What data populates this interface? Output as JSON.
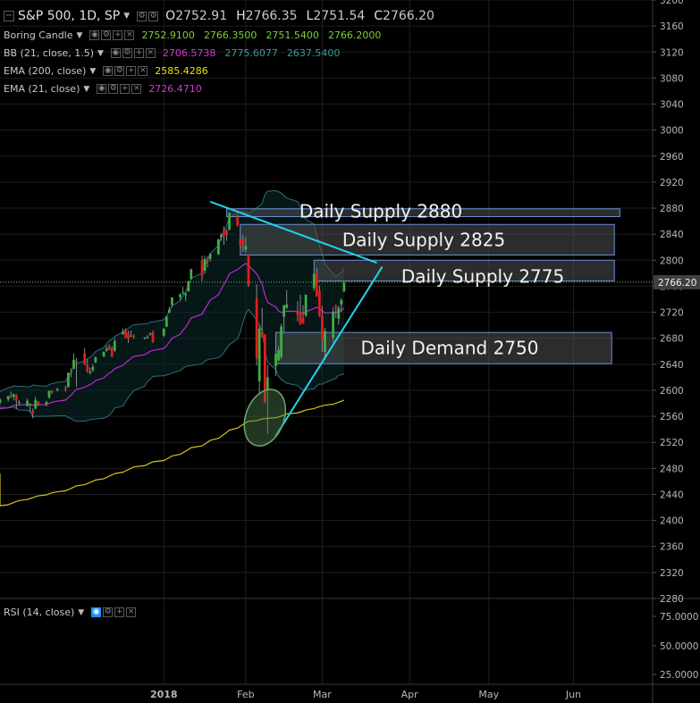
{
  "header": {
    "symbol": "S&P 500, 1D, SP",
    "ohlc": [
      {
        "label": "O",
        "value": "2752.91"
      },
      {
        "label": "H",
        "value": "2766.35"
      },
      {
        "label": "L",
        "value": "2751.54"
      },
      {
        "label": "C",
        "value": "2766.20"
      }
    ]
  },
  "indicators": [
    {
      "name": "Boring Candle",
      "values": [
        "2752.9100",
        "2766.3500",
        "2751.5400",
        "2766.2000"
      ],
      "colors": [
        "#7ccf3a",
        "#7ccf3a",
        "#7ccf3a",
        "#7ccf3a"
      ]
    },
    {
      "name": "BB (21, close, 1.5)",
      "values": [
        "2706.5738",
        "2775.6077",
        "2637.5400"
      ],
      "colors": [
        "#d23ad2",
        "#3a9aa0",
        "#3a9aa0"
      ]
    },
    {
      "name": "EMA (200, close)",
      "values": [
        "2585.4286"
      ],
      "colors": [
        "#e6e600"
      ]
    },
    {
      "name": "EMA (21, close)",
      "values": [
        "2726.4710"
      ],
      "colors": [
        "#d23ad2"
      ]
    }
  ],
  "rsi_panel": {
    "label": "RSI (14, close)"
  },
  "colors": {
    "up": "#3cb043",
    "down": "#e21d1d",
    "trend": "#22d3ee",
    "ema200": "#d4c21a",
    "ema21": "#c026d3",
    "bb": "#2f6f78",
    "zone_fill": "#505050",
    "zone_border": "#6b8fd6",
    "price_tag": "#3f3f3f",
    "ellipse": "#4a7a4a"
  },
  "chart_data": {
    "type": "candlestick",
    "y_ticks": [
      3200,
      3160,
      3120,
      3080,
      3040,
      3000,
      2960,
      2920,
      2880,
      2840,
      2800,
      2760,
      2720,
      2680,
      2640,
      2600,
      2560,
      2520,
      2480,
      2440,
      2400,
      2360,
      2320,
      2280
    ],
    "ylim": [
      2280,
      3200
    ],
    "x_labels": [
      "2018",
      "Feb",
      "Mar",
      "Apr",
      "May",
      "Jun"
    ],
    "x_label_dates": [
      "2018-01-02",
      "2018-02-01",
      "2018-03-01",
      "2018-04-02",
      "2018-05-01",
      "2018-06-01"
    ],
    "x_range": [
      "2017-11-03",
      "2018-06-30"
    ],
    "current_price": "2766.20",
    "rsi_ticks": [
      "75.0000",
      "50.0000",
      "25.0000"
    ],
    "zones": [
      {
        "label": "Daily Supply 2880",
        "x_start": "2018-01-25",
        "x_end": "2018-06-18",
        "y_low": 2867,
        "y_high": 2879
      },
      {
        "label": "Daily Supply 2825",
        "x_start": "2018-01-30",
        "x_end": "2018-06-16",
        "y_low": 2808,
        "y_high": 2855
      },
      {
        "label": "Daily Supply 2775",
        "x_start": "2018-02-26",
        "x_end": "2018-06-16",
        "y_low": 2768,
        "y_high": 2800
      },
      {
        "label": "Daily Demand 2750",
        "x_start": "2018-02-12",
        "x_end": "2018-06-15",
        "y_low": 2641,
        "y_high": 2689
      }
    ],
    "trendlines": [
      {
        "from": {
          "date": "2018-01-19",
          "price": 2890
        },
        "to": {
          "date": "2018-03-21",
          "price": 2796
        }
      },
      {
        "from": {
          "date": "2018-02-12",
          "price": 2530
        },
        "to": {
          "date": "2018-03-23",
          "price": 2790
        }
      }
    ],
    "ellipse": {
      "center": {
        "date": "2018-02-08",
        "price": 2558
      },
      "span_days": 14,
      "span_price": 90
    },
    "candles": [
      {
        "d": "2017-11-03",
        "o": 2581,
        "h": 2588,
        "l": 2578,
        "c": 2586
      },
      {
        "d": "2017-11-06",
        "o": 2586,
        "h": 2592,
        "l": 2583,
        "c": 2591
      },
      {
        "d": "2017-11-07",
        "o": 2592,
        "h": 2598,
        "l": 2588,
        "c": 2590
      },
      {
        "d": "2017-11-08",
        "o": 2590,
        "h": 2595,
        "l": 2585,
        "c": 2594
      },
      {
        "d": "2017-11-09",
        "o": 2592,
        "h": 2594,
        "l": 2571,
        "c": 2584
      },
      {
        "d": "2017-11-10",
        "o": 2582,
        "h": 2585,
        "l": 2577,
        "c": 2582
      },
      {
        "d": "2017-11-13",
        "o": 2576,
        "h": 2587,
        "l": 2575,
        "c": 2584
      },
      {
        "d": "2017-11-14",
        "o": 2577,
        "h": 2580,
        "l": 2566,
        "c": 2579
      },
      {
        "d": "2017-11-15",
        "o": 2569,
        "h": 2572,
        "l": 2557,
        "c": 2564
      },
      {
        "d": "2017-11-16",
        "o": 2572,
        "h": 2590,
        "l": 2571,
        "c": 2585
      },
      {
        "d": "2017-11-17",
        "o": 2583,
        "h": 2583,
        "l": 2576,
        "c": 2578
      },
      {
        "d": "2017-11-20",
        "o": 2579,
        "h": 2584,
        "l": 2575,
        "c": 2582
      },
      {
        "d": "2017-11-21",
        "o": 2589,
        "h": 2600,
        "l": 2587,
        "c": 2599
      },
      {
        "d": "2017-11-22",
        "o": 2600,
        "h": 2600,
        "l": 2594,
        "c": 2597
      },
      {
        "d": "2017-11-24",
        "o": 2600,
        "h": 2604,
        "l": 2598,
        "c": 2602
      },
      {
        "d": "2017-11-27",
        "o": 2603,
        "h": 2607,
        "l": 2598,
        "c": 2601
      },
      {
        "d": "2017-11-28",
        "o": 2605,
        "h": 2627,
        "l": 2604,
        "c": 2627
      },
      {
        "d": "2017-11-29",
        "o": 2627,
        "h": 2634,
        "l": 2620,
        "c": 2626
      },
      {
        "d": "2017-11-30",
        "o": 2633,
        "h": 2657,
        "l": 2633,
        "c": 2647
      },
      {
        "d": "2017-12-01",
        "o": 2645,
        "h": 2650,
        "l": 2605,
        "c": 2642
      },
      {
        "d": "2017-12-04",
        "o": 2657,
        "h": 2665,
        "l": 2639,
        "c": 2639
      },
      {
        "d": "2017-12-05",
        "o": 2639,
        "h": 2648,
        "l": 2627,
        "c": 2629
      },
      {
        "d": "2017-12-06",
        "o": 2627,
        "h": 2635,
        "l": 2624,
        "c": 2629
      },
      {
        "d": "2017-12-07",
        "o": 2631,
        "h": 2640,
        "l": 2628,
        "c": 2636
      },
      {
        "d": "2017-12-08",
        "o": 2643,
        "h": 2652,
        "l": 2642,
        "c": 2651
      },
      {
        "d": "2017-12-11",
        "o": 2652,
        "h": 2660,
        "l": 2651,
        "c": 2659
      },
      {
        "d": "2017-12-12",
        "o": 2661,
        "h": 2669,
        "l": 2659,
        "c": 2664
      },
      {
        "d": "2017-12-13",
        "o": 2667,
        "h": 2671,
        "l": 2662,
        "c": 2662
      },
      {
        "d": "2017-12-14",
        "o": 2665,
        "h": 2668,
        "l": 2651,
        "c": 2652
      },
      {
        "d": "2017-12-15",
        "o": 2661,
        "h": 2680,
        "l": 2659,
        "c": 2676
      },
      {
        "d": "2017-12-18",
        "o": 2686,
        "h": 2695,
        "l": 2686,
        "c": 2690
      },
      {
        "d": "2017-12-19",
        "o": 2692,
        "h": 2695,
        "l": 2680,
        "c": 2681
      },
      {
        "d": "2017-12-20",
        "o": 2688,
        "h": 2692,
        "l": 2673,
        "c": 2679
      },
      {
        "d": "2017-12-21",
        "o": 2683,
        "h": 2692,
        "l": 2682,
        "c": 2684
      },
      {
        "d": "2017-12-22",
        "o": 2684,
        "h": 2686,
        "l": 2679,
        "c": 2683
      },
      {
        "d": "2017-12-26",
        "o": 2680,
        "h": 2682,
        "l": 2678,
        "c": 2681
      },
      {
        "d": "2017-12-27",
        "o": 2682,
        "h": 2685,
        "l": 2679,
        "c": 2682
      },
      {
        "d": "2017-12-28",
        "o": 2686,
        "h": 2688,
        "l": 2684,
        "c": 2688
      },
      {
        "d": "2017-12-29",
        "o": 2689,
        "h": 2692,
        "l": 2673,
        "c": 2674
      },
      {
        "d": "2018-01-02",
        "o": 2684,
        "h": 2695,
        "l": 2682,
        "c": 2695
      },
      {
        "d": "2018-01-03",
        "o": 2698,
        "h": 2715,
        "l": 2697,
        "c": 2713
      },
      {
        "d": "2018-01-04",
        "o": 2719,
        "h": 2729,
        "l": 2719,
        "c": 2724
      },
      {
        "d": "2018-01-05",
        "o": 2731,
        "h": 2743,
        "l": 2727,
        "c": 2743
      },
      {
        "d": "2018-01-08",
        "o": 2743,
        "h": 2749,
        "l": 2738,
        "c": 2748
      },
      {
        "d": "2018-01-09",
        "o": 2751,
        "h": 2759,
        "l": 2747,
        "c": 2751
      },
      {
        "d": "2018-01-10",
        "o": 2746,
        "h": 2751,
        "l": 2737,
        "c": 2748
      },
      {
        "d": "2018-01-11",
        "o": 2752,
        "h": 2768,
        "l": 2752,
        "c": 2768
      },
      {
        "d": "2018-01-12",
        "o": 2771,
        "h": 2787,
        "l": 2770,
        "c": 2786
      },
      {
        "d": "2018-01-16",
        "o": 2799,
        "h": 2807,
        "l": 2768,
        "c": 2776
      },
      {
        "d": "2018-01-17",
        "o": 2784,
        "h": 2807,
        "l": 2779,
        "c": 2802
      },
      {
        "d": "2018-01-18",
        "o": 2802,
        "h": 2806,
        "l": 2789,
        "c": 2798
      },
      {
        "d": "2018-01-19",
        "o": 2802,
        "h": 2810,
        "l": 2798,
        "c": 2810
      },
      {
        "d": "2018-01-22",
        "o": 2809,
        "h": 2833,
        "l": 2808,
        "c": 2832
      },
      {
        "d": "2018-01-23",
        "o": 2835,
        "h": 2842,
        "l": 2830,
        "c": 2839
      },
      {
        "d": "2018-01-24",
        "o": 2845,
        "h": 2852,
        "l": 2824,
        "c": 2837
      },
      {
        "d": "2018-01-25",
        "o": 2846,
        "h": 2848,
        "l": 2830,
        "c": 2839
      },
      {
        "d": "2018-01-26",
        "o": 2847,
        "h": 2873,
        "l": 2846,
        "c": 2873
      },
      {
        "d": "2018-01-29",
        "o": 2867,
        "h": 2870,
        "l": 2852,
        "c": 2853
      },
      {
        "d": "2018-01-30",
        "o": 2832,
        "h": 2837,
        "l": 2818,
        "c": 2822
      },
      {
        "d": "2018-01-31",
        "o": 2832,
        "h": 2839,
        "l": 2813,
        "c": 2824
      },
      {
        "d": "2018-02-01",
        "o": 2816,
        "h": 2835,
        "l": 2812,
        "c": 2822
      },
      {
        "d": "2018-02-02",
        "o": 2808,
        "h": 2808,
        "l": 2759,
        "c": 2762
      },
      {
        "d": "2018-02-05",
        "o": 2741,
        "h": 2763,
        "l": 2638,
        "c": 2649
      },
      {
        "d": "2018-02-06",
        "o": 2614,
        "h": 2701,
        "l": 2593,
        "c": 2695
      },
      {
        "d": "2018-02-07",
        "o": 2690,
        "h": 2727,
        "l": 2681,
        "c": 2682
      },
      {
        "d": "2018-02-08",
        "o": 2686,
        "h": 2686,
        "l": 2580,
        "c": 2581
      },
      {
        "d": "2018-02-09",
        "o": 2601,
        "h": 2639,
        "l": 2533,
        "c": 2620
      },
      {
        "d": "2018-02-12",
        "o": 2637,
        "h": 2672,
        "l": 2622,
        "c": 2656
      },
      {
        "d": "2018-02-13",
        "o": 2646,
        "h": 2668,
        "l": 2645,
        "c": 2662
      },
      {
        "d": "2018-02-14",
        "o": 2651,
        "h": 2702,
        "l": 2648,
        "c": 2698
      },
      {
        "d": "2018-02-15",
        "o": 2713,
        "h": 2731,
        "l": 2689,
        "c": 2731
      },
      {
        "d": "2018-02-16",
        "o": 2727,
        "h": 2754,
        "l": 2725,
        "c": 2732
      },
      {
        "d": "2018-02-20",
        "o": 2722,
        "h": 2737,
        "l": 2706,
        "c": 2716
      },
      {
        "d": "2018-02-21",
        "o": 2721,
        "h": 2747,
        "l": 2701,
        "c": 2701
      },
      {
        "d": "2018-02-22",
        "o": 2711,
        "h": 2731,
        "l": 2702,
        "c": 2703
      },
      {
        "d": "2018-02-23",
        "o": 2715,
        "h": 2747,
        "l": 2713,
        "c": 2747
      },
      {
        "d": "2018-02-26",
        "o": 2757,
        "h": 2780,
        "l": 2753,
        "c": 2779
      },
      {
        "d": "2018-02-27",
        "o": 2780,
        "h": 2789,
        "l": 2744,
        "c": 2744
      },
      {
        "d": "2018-02-28",
        "o": 2753,
        "h": 2761,
        "l": 2713,
        "c": 2714
      },
      {
        "d": "2018-03-01",
        "o": 2715,
        "h": 2730,
        "l": 2659,
        "c": 2677
      },
      {
        "d": "2018-03-02",
        "o": 2659,
        "h": 2696,
        "l": 2647,
        "c": 2691
      },
      {
        "d": "2018-03-05",
        "o": 2681,
        "h": 2728,
        "l": 2675,
        "c": 2721
      },
      {
        "d": "2018-03-06",
        "o": 2730,
        "h": 2732,
        "l": 2711,
        "c": 2728
      },
      {
        "d": "2018-03-07",
        "o": 2710,
        "h": 2730,
        "l": 2701,
        "c": 2727
      },
      {
        "d": "2018-03-08",
        "o": 2732,
        "h": 2741,
        "l": 2721,
        "c": 2739
      },
      {
        "d": "2018-03-09",
        "o": 2752,
        "h": 2766,
        "l": 2751,
        "c": 2766
      }
    ]
  }
}
